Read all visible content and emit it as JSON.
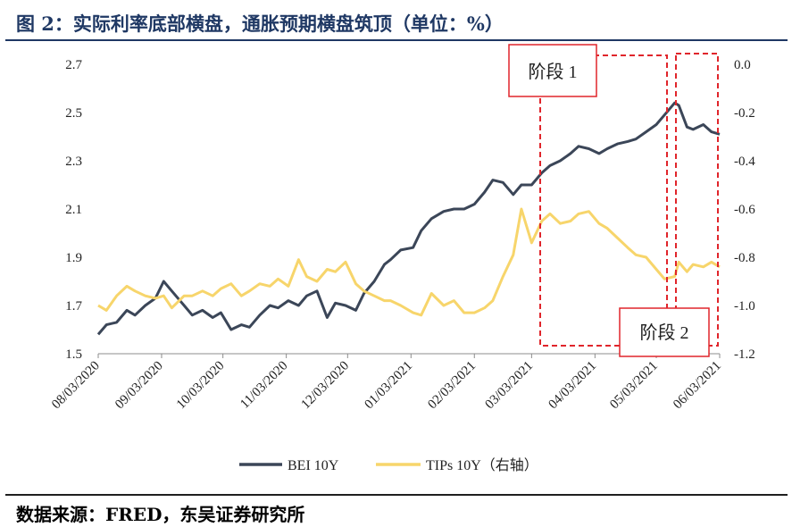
{
  "title": "图 2：实际利率底部横盘，通胀预期横盘筑顶（单位：%）",
  "source": "数据来源：FRED，东吴证券研究所",
  "colors": {
    "bei": "#3b4658",
    "tips": "#f7d56b",
    "box": "#e0252b",
    "title": "#1f3864"
  },
  "chart_data": {
    "type": "line",
    "x_ticks": [
      "08/03/2020",
      "09/03/2020",
      "10/03/2020",
      "11/03/2020",
      "12/03/2020",
      "01/03/2021",
      "02/03/2021",
      "03/03/2021",
      "04/03/2021",
      "05/03/2021",
      "06/03/2021"
    ],
    "y_left": {
      "min": 1.5,
      "max": 2.7,
      "ticks": [
        "1.5",
        "1.7",
        "1.9",
        "2.1",
        "2.3",
        "2.5",
        "2.7"
      ]
    },
    "y_right": {
      "min": -1.2,
      "max": 0.0,
      "ticks": [
        "-1.2",
        "-1.0",
        "-0.8",
        "-0.6",
        "-0.4",
        "-0.2",
        "0.0"
      ]
    },
    "legend_position": "bottom",
    "annotations": [
      "阶段 1",
      "阶段 2"
    ],
    "series": [
      {
        "name": "BEI 10Y",
        "axis": "left",
        "color": "#3b4658",
        "points": [
          [
            "08/03/2020",
            1.58
          ],
          [
            "08/07/2020",
            1.62
          ],
          [
            "08/12/2020",
            1.63
          ],
          [
            "08/17/2020",
            1.68
          ],
          [
            "08/21/2020",
            1.66
          ],
          [
            "08/26/2020",
            1.7
          ],
          [
            "08/31/2020",
            1.73
          ],
          [
            "09/04/2020",
            1.8
          ],
          [
            "09/08/2020",
            1.76
          ],
          [
            "09/14/2020",
            1.7
          ],
          [
            "09/18/2020",
            1.66
          ],
          [
            "09/23/2020",
            1.68
          ],
          [
            "09/28/2020",
            1.65
          ],
          [
            "10/02/2020",
            1.67
          ],
          [
            "10/07/2020",
            1.6
          ],
          [
            "10/12/2020",
            1.62
          ],
          [
            "10/16/2020",
            1.61
          ],
          [
            "10/21/2020",
            1.66
          ],
          [
            "10/26/2020",
            1.7
          ],
          [
            "10/30/2020",
            1.69
          ],
          [
            "11/04/2020",
            1.72
          ],
          [
            "11/09/2020",
            1.7
          ],
          [
            "11/13/2020",
            1.74
          ],
          [
            "11/18/2020",
            1.76
          ],
          [
            "11/23/2020",
            1.65
          ],
          [
            "11/27/2020",
            1.71
          ],
          [
            "12/02/2020",
            1.7
          ],
          [
            "12/07/2020",
            1.68
          ],
          [
            "12/11/2020",
            1.75
          ],
          [
            "12/16/2020",
            1.8
          ],
          [
            "12/21/2020",
            1.87
          ],
          [
            "12/24/2020",
            1.89
          ],
          [
            "12/29/2020",
            1.93
          ],
          [
            "01/04/2021",
            1.94
          ],
          [
            "01/08/2021",
            2.01
          ],
          [
            "01/13/2021",
            2.06
          ],
          [
            "01/19/2021",
            2.09
          ],
          [
            "01/24/2021",
            2.1
          ],
          [
            "01/29/2021",
            2.1
          ],
          [
            "02/03/2021",
            2.12
          ],
          [
            "02/08/2021",
            2.17
          ],
          [
            "02/12/2021",
            2.22
          ],
          [
            "02/17/2021",
            2.21
          ],
          [
            "02/22/2021",
            2.16
          ],
          [
            "02/26/2021",
            2.2
          ],
          [
            "03/03/2021",
            2.2
          ],
          [
            "03/08/2021",
            2.25
          ],
          [
            "03/12/2021",
            2.28
          ],
          [
            "03/17/2021",
            2.3
          ],
          [
            "03/22/2021",
            2.33
          ],
          [
            "03/26/2021",
            2.36
          ],
          [
            "03/31/2021",
            2.35
          ],
          [
            "04/05/2021",
            2.33
          ],
          [
            "04/09/2021",
            2.35
          ],
          [
            "04/14/2021",
            2.37
          ],
          [
            "04/19/2021",
            2.38
          ],
          [
            "04/23/2021",
            2.39
          ],
          [
            "04/28/2021",
            2.42
          ],
          [
            "05/03/2021",
            2.45
          ],
          [
            "05/07/2021",
            2.49
          ],
          [
            "05/12/2021",
            2.54
          ],
          [
            "05/14/2021",
            2.53
          ],
          [
            "05/18/2021",
            2.44
          ],
          [
            "05/21/2021",
            2.43
          ],
          [
            "05/26/2021",
            2.45
          ],
          [
            "05/30/2021",
            2.42
          ],
          [
            "06/03/2021",
            2.41
          ]
        ]
      },
      {
        "name": "TIPs 10Y（右轴）",
        "axis": "right",
        "color": "#f7d56b",
        "points": [
          [
            "08/03/2020",
            -1.0
          ],
          [
            "08/07/2020",
            -1.02
          ],
          [
            "08/12/2020",
            -0.96
          ],
          [
            "08/17/2020",
            -0.92
          ],
          [
            "08/21/2020",
            -0.94
          ],
          [
            "08/26/2020",
            -0.96
          ],
          [
            "08/31/2020",
            -0.97
          ],
          [
            "09/04/2020",
            -0.96
          ],
          [
            "09/08/2020",
            -1.01
          ],
          [
            "09/14/2020",
            -0.96
          ],
          [
            "09/18/2020",
            -0.96
          ],
          [
            "09/23/2020",
            -0.94
          ],
          [
            "09/28/2020",
            -0.96
          ],
          [
            "10/02/2020",
            -0.93
          ],
          [
            "10/07/2020",
            -0.91
          ],
          [
            "10/12/2020",
            -0.96
          ],
          [
            "10/16/2020",
            -0.94
          ],
          [
            "10/21/2020",
            -0.91
          ],
          [
            "10/26/2020",
            -0.92
          ],
          [
            "10/30/2020",
            -0.89
          ],
          [
            "11/04/2020",
            -0.92
          ],
          [
            "11/09/2020",
            -0.81
          ],
          [
            "11/13/2020",
            -0.88
          ],
          [
            "11/18/2020",
            -0.9
          ],
          [
            "11/23/2020",
            -0.85
          ],
          [
            "11/27/2020",
            -0.86
          ],
          [
            "12/02/2020",
            -0.82
          ],
          [
            "12/07/2020",
            -0.91
          ],
          [
            "12/11/2020",
            -0.94
          ],
          [
            "12/16/2020",
            -0.96
          ],
          [
            "12/21/2020",
            -0.98
          ],
          [
            "12/24/2020",
            -0.98
          ],
          [
            "12/29/2020",
            -1.0
          ],
          [
            "01/04/2021",
            -1.03
          ],
          [
            "01/08/2021",
            -1.04
          ],
          [
            "01/13/2021",
            -0.95
          ],
          [
            "01/19/2021",
            -1.0
          ],
          [
            "01/24/2021",
            -0.98
          ],
          [
            "01/29/2021",
            -1.03
          ],
          [
            "02/03/2021",
            -1.03
          ],
          [
            "02/08/2021",
            -1.01
          ],
          [
            "02/12/2021",
            -0.98
          ],
          [
            "02/17/2021",
            -0.88
          ],
          [
            "02/22/2021",
            -0.79
          ],
          [
            "02/26/2021",
            -0.6
          ],
          [
            "03/03/2021",
            -0.74
          ],
          [
            "03/08/2021",
            -0.65
          ],
          [
            "03/12/2021",
            -0.62
          ],
          [
            "03/17/2021",
            -0.66
          ],
          [
            "03/22/2021",
            -0.65
          ],
          [
            "03/26/2021",
            -0.62
          ],
          [
            "03/31/2021",
            -0.61
          ],
          [
            "04/05/2021",
            -0.66
          ],
          [
            "04/09/2021",
            -0.68
          ],
          [
            "04/14/2021",
            -0.72
          ],
          [
            "04/19/2021",
            -0.76
          ],
          [
            "04/23/2021",
            -0.79
          ],
          [
            "04/28/2021",
            -0.8
          ],
          [
            "05/03/2021",
            -0.85
          ],
          [
            "05/07/2021",
            -0.89
          ],
          [
            "05/12/2021",
            -0.88
          ],
          [
            "05/14/2021",
            -0.82
          ],
          [
            "05/18/2021",
            -0.86
          ],
          [
            "05/21/2021",
            -0.83
          ],
          [
            "05/26/2021",
            -0.84
          ],
          [
            "05/30/2021",
            -0.82
          ],
          [
            "06/03/2021",
            -0.84
          ]
        ]
      }
    ]
  }
}
